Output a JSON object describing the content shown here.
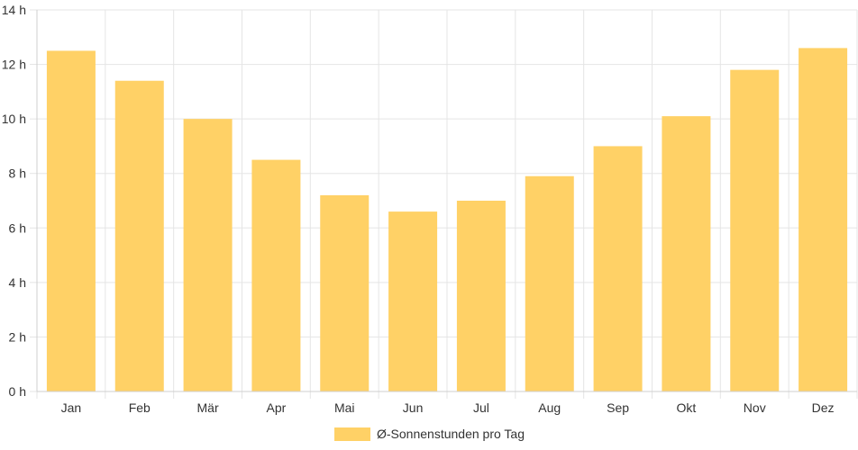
{
  "chart_data": {
    "type": "bar",
    "categories": [
      "Jan",
      "Feb",
      "Mär",
      "Apr",
      "Mai",
      "Jun",
      "Jul",
      "Aug",
      "Sep",
      "Okt",
      "Nov",
      "Dez"
    ],
    "series": [
      {
        "name": "Ø-Sonnenstunden pro Tag",
        "values": [
          12.5,
          11.4,
          10.0,
          8.5,
          7.2,
          6.6,
          7.0,
          7.9,
          9.0,
          10.1,
          11.8,
          12.6
        ],
        "color": "#FFD166"
      }
    ],
    "y_ticks": [
      "0 h",
      "2 h",
      "4 h",
      "6 h",
      "8 h",
      "10 h",
      "12 h",
      "14 h"
    ],
    "ylim": [
      0,
      14
    ],
    "grid": true,
    "legend_position": "bottom"
  }
}
